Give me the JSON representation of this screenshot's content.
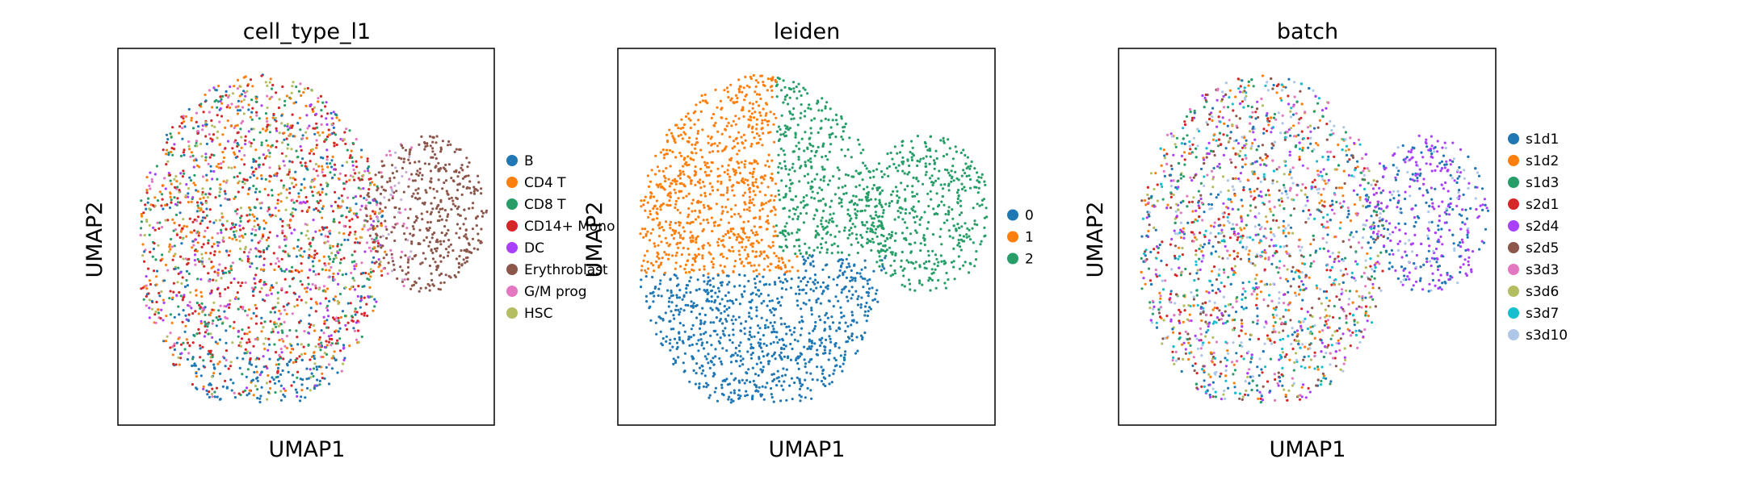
{
  "chart_data": [
    {
      "type": "scatter",
      "title": "cell_type_l1",
      "xlabel": "UMAP1",
      "ylabel": "UMAP2",
      "grid": false,
      "ticks": false,
      "legend_position": "right",
      "legend": [
        {
          "name": "B",
          "color": "#1f77b4"
        },
        {
          "name": "CD4 T",
          "color": "#ff7f0e"
        },
        {
          "name": "CD8 T",
          "color": "#279e68"
        },
        {
          "name": "CD14+ Mono",
          "color": "#d62728"
        },
        {
          "name": "DC",
          "color": "#aa40fc"
        },
        {
          "name": "Erythroblast",
          "color": "#8c564b"
        },
        {
          "name": "G/M prog",
          "color": "#e377c2"
        },
        {
          "name": "HSC",
          "color": "#b5bd61"
        }
      ]
    },
    {
      "type": "scatter",
      "title": "leiden",
      "xlabel": "UMAP1",
      "ylabel": "UMAP2",
      "grid": false,
      "ticks": false,
      "legend_position": "right",
      "legend": [
        {
          "name": "0",
          "color": "#1f77b4"
        },
        {
          "name": "1",
          "color": "#ff7f0e"
        },
        {
          "name": "2",
          "color": "#279e68"
        }
      ]
    },
    {
      "type": "scatter",
      "title": "batch",
      "xlabel": "UMAP1",
      "ylabel": "UMAP2",
      "grid": false,
      "ticks": false,
      "legend_position": "right",
      "legend": [
        {
          "name": "s1d1",
          "color": "#1f77b4"
        },
        {
          "name": "s1d2",
          "color": "#ff7f0e"
        },
        {
          "name": "s1d3",
          "color": "#279e68"
        },
        {
          "name": "s2d1",
          "color": "#d62728"
        },
        {
          "name": "s2d4",
          "color": "#aa40fc"
        },
        {
          "name": "s2d5",
          "color": "#8c564b"
        },
        {
          "name": "s3d3",
          "color": "#e377c2"
        },
        {
          "name": "s3d6",
          "color": "#b5bd61"
        },
        {
          "name": "s3d7",
          "color": "#17becf"
        },
        {
          "name": "s3d10",
          "color": "#aec7e8"
        }
      ]
    }
  ]
}
